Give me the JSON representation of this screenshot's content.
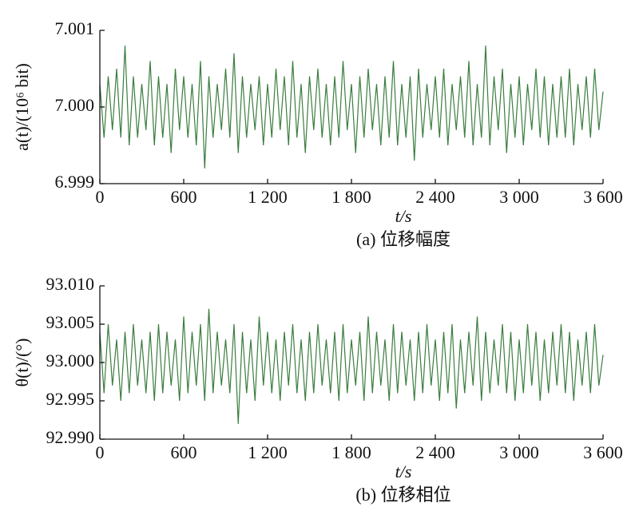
{
  "chart_data": [
    {
      "type": "line",
      "xlabel": "t/s",
      "ylabel": "a(t)/(10⁶ bit)",
      "caption": "(a) 位移幅度",
      "xlim": [
        0,
        3600
      ],
      "xticks": [
        0,
        600,
        {
          "value": 1200,
          "label": "1 200"
        },
        {
          "value": 1800,
          "label": "1 800"
        },
        {
          "value": 2400,
          "label": "2 400"
        },
        {
          "value": 3000,
          "label": "3 000"
        },
        {
          "value": 3600,
          "label": "3 600"
        }
      ],
      "ylim": [
        6.999,
        7.001
      ],
      "yticks": [
        6.999,
        {
          "value": 7,
          "label": "7.000"
        },
        7.001
      ],
      "x": [
        0,
        30,
        60,
        90,
        120,
        150,
        180,
        210,
        240,
        270,
        300,
        330,
        360,
        390,
        420,
        450,
        480,
        510,
        540,
        570,
        600,
        630,
        660,
        690,
        720,
        750,
        780,
        810,
        840,
        870,
        900,
        930,
        960,
        990,
        1020,
        1050,
        1080,
        1110,
        1140,
        1170,
        1200,
        1230,
        1260,
        1290,
        1320,
        1350,
        1380,
        1410,
        1440,
        1470,
        1500,
        1530,
        1560,
        1590,
        1620,
        1650,
        1680,
        1710,
        1740,
        1770,
        1800,
        1830,
        1860,
        1890,
        1920,
        1950,
        1980,
        2010,
        2040,
        2070,
        2100,
        2130,
        2160,
        2190,
        2220,
        2250,
        2280,
        2310,
        2340,
        2370,
        2400,
        2430,
        2460,
        2490,
        2520,
        2550,
        2580,
        2610,
        2640,
        2670,
        2700,
        2730,
        2760,
        2790,
        2820,
        2850,
        2880,
        2910,
        2940,
        2970,
        3000,
        3030,
        3060,
        3090,
        3120,
        3150,
        3180,
        3210,
        3240,
        3270,
        3300,
        3330,
        3360,
        3390,
        3420,
        3450,
        3480,
        3510,
        3540,
        3570,
        3600
      ],
      "series": [
        {
          "color": "#3a7d3e",
          "values": [
            7.0003,
            6.9996,
            7.0004,
            6.9997,
            7.0005,
            6.9996,
            7.0008,
            6.9995,
            7.0004,
            6.9996,
            7.0003,
            6.9997,
            7.0006,
            6.9995,
            7.0004,
            6.9996,
            7.0003,
            6.9994,
            7.0005,
            6.9997,
            7.0004,
            6.9996,
            7.0003,
            6.9995,
            7.0006,
            6.9992,
            7.0004,
            6.9996,
            7.0003,
            6.9997,
            7.0005,
            6.9996,
            7.0007,
            6.9994,
            7.0004,
            6.9996,
            7.0003,
            6.9997,
            7.0004,
            6.9995,
            7.0003,
            6.9996,
            7.0005,
            6.9997,
            7.0004,
            6.9995,
            7.0006,
            6.9996,
            7.0003,
            6.9994,
            7.0004,
            6.9997,
            7.0005,
            6.9996,
            7.0003,
            6.9995,
            7.0004,
            6.9996,
            7.0006,
            6.9997,
            7.0003,
            6.9994,
            7.0004,
            6.9996,
            7.0005,
            6.9997,
            7.0003,
            6.9995,
            7.0004,
            6.9996,
            7.0006,
            6.9995,
            7.0003,
            6.9996,
            7.0004,
            6.9993,
            7.0005,
            6.9996,
            7.0003,
            6.9997,
            7.0004,
            6.9996,
            7.0005,
            6.9995,
            7.0003,
            6.9997,
            7.0004,
            6.9996,
            7.0006,
            6.9995,
            7.0003,
            6.9996,
            7.0008,
            6.9995,
            7.0004,
            6.9997,
            7.0005,
            6.9994,
            7.0003,
            6.9996,
            7.0004,
            6.9995,
            7.0003,
            6.9997,
            7.0005,
            6.9996,
            7.0004,
            6.9995,
            7.0003,
            6.9996,
            7.0004,
            6.9996,
            7.0005,
            6.9995,
            7.0003,
            6.9997,
            7.0004,
            6.9996,
            7.0005,
            6.9997,
            7.0002
          ]
        }
      ]
    },
    {
      "type": "line",
      "xlabel": "t/s",
      "ylabel": "θ(t)/(°)",
      "caption": "(b) 位移相位",
      "xlim": [
        0,
        3600
      ],
      "xticks": [
        0,
        600,
        {
          "value": 1200,
          "label": "1 200"
        },
        {
          "value": 1800,
          "label": "1 800"
        },
        {
          "value": 2400,
          "label": "2 400"
        },
        {
          "value": 3000,
          "label": "3 000"
        },
        {
          "value": 3600,
          "label": "3 600"
        }
      ],
      "ylim": [
        92.99,
        93.01
      ],
      "yticks": [
        {
          "value": 92.99,
          "label": "92.990"
        },
        92.995,
        {
          "value": 93,
          "label": "93.000"
        },
        93.005,
        {
          "value": 93.01,
          "label": "93.010"
        }
      ],
      "x": [
        0,
        30,
        60,
        90,
        120,
        150,
        180,
        210,
        240,
        270,
        300,
        330,
        360,
        390,
        420,
        450,
        480,
        510,
        540,
        570,
        600,
        630,
        660,
        690,
        720,
        750,
        780,
        810,
        840,
        870,
        900,
        930,
        960,
        990,
        1020,
        1050,
        1080,
        1110,
        1140,
        1170,
        1200,
        1230,
        1260,
        1290,
        1320,
        1350,
        1380,
        1410,
        1440,
        1470,
        1500,
        1530,
        1560,
        1590,
        1620,
        1650,
        1680,
        1710,
        1740,
        1770,
        1800,
        1830,
        1860,
        1890,
        1920,
        1950,
        1980,
        2010,
        2040,
        2070,
        2100,
        2130,
        2160,
        2190,
        2220,
        2250,
        2280,
        2310,
        2340,
        2370,
        2400,
        2430,
        2460,
        2490,
        2520,
        2550,
        2580,
        2610,
        2640,
        2670,
        2700,
        2730,
        2760,
        2790,
        2820,
        2850,
        2880,
        2910,
        2940,
        2970,
        3000,
        3030,
        3060,
        3090,
        3120,
        3150,
        3180,
        3210,
        3240,
        3270,
        3300,
        3330,
        3360,
        3390,
        3420,
        3450,
        3480,
        3510,
        3540,
        3570,
        3600
      ],
      "series": [
        {
          "color": "#3a7d3e",
          "values": [
            93.004,
            92.996,
            93.005,
            92.997,
            93.003,
            92.995,
            93.004,
            92.996,
            93.005,
            92.997,
            93.003,
            92.996,
            93.004,
            92.995,
            93.005,
            92.996,
            93.004,
            92.997,
            93.003,
            92.995,
            93.006,
            92.996,
            93.004,
            92.997,
            93.005,
            92.995,
            93.007,
            92.996,
            93.004,
            92.997,
            93.003,
            92.996,
            93.005,
            92.992,
            93.004,
            92.996,
            93.003,
            92.995,
            93.006,
            92.997,
            93.004,
            92.996,
            93.003,
            92.995,
            93.004,
            92.997,
            93.005,
            92.996,
            93.003,
            92.995,
            93.004,
            92.996,
            93.005,
            92.997,
            93.003,
            92.996,
            93.004,
            92.995,
            93.005,
            92.996,
            93.003,
            92.997,
            93.004,
            92.995,
            93.006,
            92.996,
            93.004,
            92.997,
            93.003,
            92.995,
            93.005,
            92.996,
            93.004,
            92.997,
            93.003,
            92.995,
            93.004,
            92.996,
            93.005,
            92.997,
            93.003,
            92.995,
            93.004,
            92.996,
            93.005,
            92.994,
            93.003,
            92.996,
            93.004,
            92.997,
            93.006,
            92.995,
            93.004,
            92.996,
            93.003,
            92.997,
            93.005,
            92.996,
            93.004,
            92.995,
            93.003,
            92.996,
            93.005,
            92.997,
            93.004,
            92.995,
            93.003,
            92.996,
            93.004,
            92.997,
            93.005,
            92.996,
            93.004,
            92.995,
            93.003,
            92.997,
            93.004,
            92.996,
            93.005,
            92.997,
            93.001
          ]
        }
      ]
    }
  ]
}
